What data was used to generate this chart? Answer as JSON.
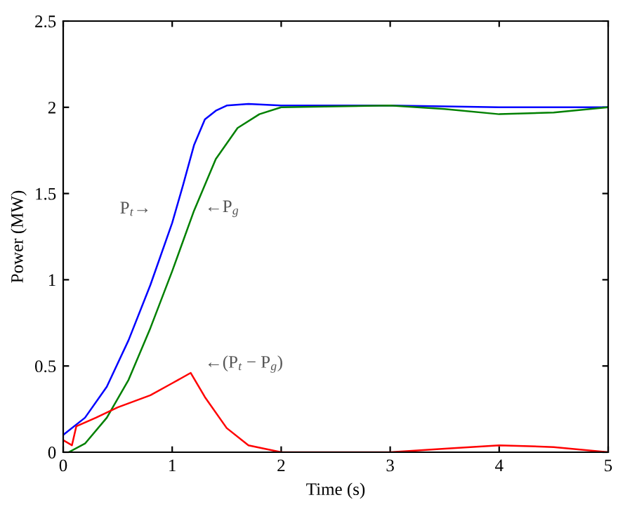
{
  "chart_data": {
    "type": "line",
    "xlabel": "Time (s)",
    "ylabel": "Power (MW)",
    "xlim": [
      0,
      5
    ],
    "ylim": [
      0,
      2.5
    ],
    "xticks": [
      0,
      1,
      2,
      3,
      4,
      5
    ],
    "yticks": [
      0,
      0.5,
      1,
      1.5,
      2,
      2.5
    ],
    "grid": false,
    "legend": false,
    "series": [
      {
        "color": "#0000ff",
        "x": [
          0,
          0.2,
          0.4,
          0.6,
          0.8,
          1.0,
          1.1,
          1.2,
          1.3,
          1.4,
          1.5,
          1.7,
          2.0,
          3.0,
          4.0,
          5.0
        ],
        "values": [
          0.1,
          0.2,
          0.38,
          0.65,
          0.97,
          1.33,
          1.55,
          1.78,
          1.93,
          1.98,
          2.01,
          2.02,
          2.01,
          2.01,
          2.0,
          2.0
        ]
      },
      {
        "color": "#008000",
        "x": [
          0.05,
          0.2,
          0.4,
          0.6,
          0.8,
          1.0,
          1.2,
          1.4,
          1.6,
          1.8,
          2.0,
          3.0,
          3.5,
          4.0,
          4.5,
          5.0
        ],
        "values": [
          0.0,
          0.05,
          0.2,
          0.42,
          0.72,
          1.05,
          1.4,
          1.7,
          1.88,
          1.96,
          2.0,
          2.01,
          1.99,
          1.96,
          1.97,
          2.0
        ]
      },
      {
        "color": "#ff0000",
        "x": [
          0,
          0.08,
          0.12,
          0.3,
          0.5,
          0.8,
          1.0,
          1.17,
          1.3,
          1.5,
          1.7,
          2.0,
          3.0,
          3.5,
          4.0,
          4.5,
          5.0
        ],
        "values": [
          0.07,
          0.04,
          0.15,
          0.2,
          0.26,
          0.33,
          0.4,
          0.46,
          0.32,
          0.14,
          0.04,
          0.0,
          0.0,
          0.02,
          0.04,
          0.03,
          0.0
        ]
      }
    ],
    "annotations": [
      "P$_{t}$→",
      "←P$_{g}$",
      "←(P$_{t}$ − P$_{g}$)"
    ]
  }
}
